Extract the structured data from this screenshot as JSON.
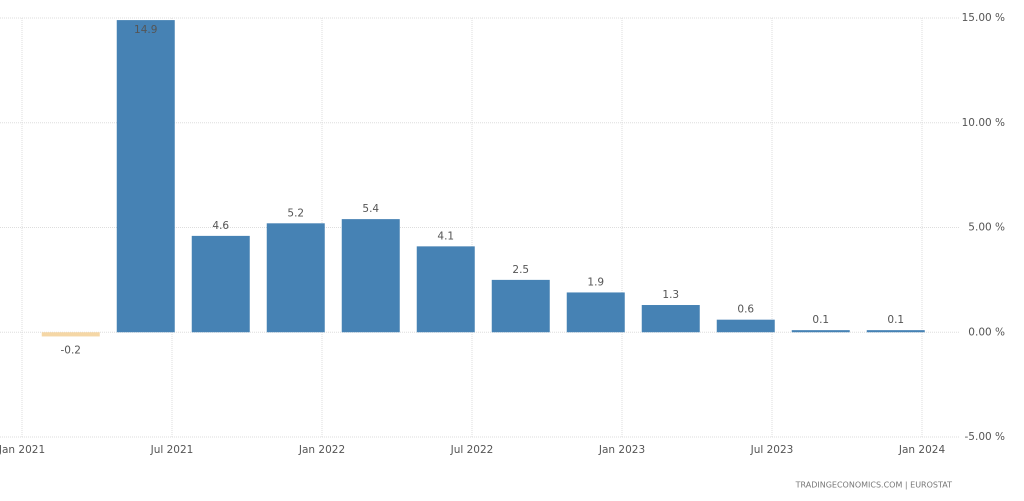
{
  "chart_data": {
    "type": "bar",
    "categories": [
      null,
      null,
      null,
      null,
      null,
      null,
      null,
      null,
      null,
      null,
      null,
      null
    ],
    "values": [
      -0.2,
      14.9,
      4.6,
      5.2,
      5.4,
      4.1,
      2.5,
      1.9,
      1.3,
      0.6,
      0.1,
      0.1
    ],
    "color": "#4682b4",
    "negative_color": "#f5d7a6",
    "x_tick_labels": [
      "Jan 2021",
      "Jul 2021",
      "Jan 2022",
      "Jul 2022",
      "Jan 2023",
      "Jul 2023",
      "Jan 2024"
    ],
    "ylim": [
      -5,
      15
    ],
    "yticks": [
      {
        "value": -5,
        "label": "-5.00 %"
      },
      {
        "value": 0,
        "label": "0.00 %"
      },
      {
        "value": 5,
        "label": "5.00 %"
      },
      {
        "value": 10,
        "label": "10.00 %"
      },
      {
        "value": 15,
        "label": "15.00 %"
      }
    ],
    "grid": true,
    "source": "TRADINGECONOMICS.COM | EUROSTAT"
  }
}
